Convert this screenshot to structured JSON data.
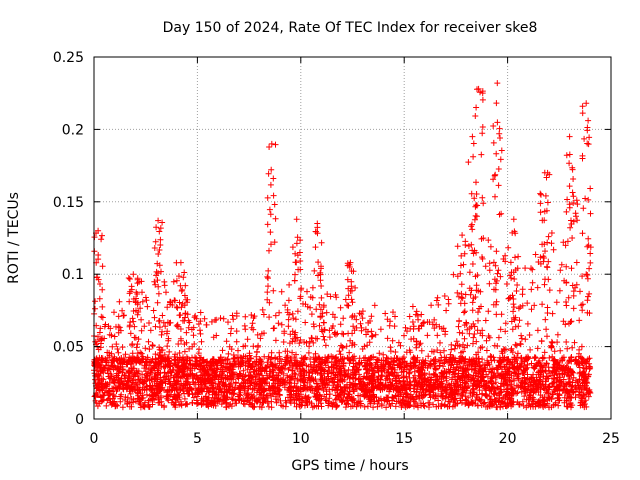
{
  "chart_data": {
    "type": "scatter",
    "title": "Day 150 of 2024, Rate Of TEC Index for receiver ske8",
    "xlabel": "GPS time / hours",
    "ylabel": "ROTI / TECUs",
    "xlim": [
      0,
      25
    ],
    "ylim": [
      0,
      0.25
    ],
    "xticks": [
      0,
      5,
      10,
      15,
      20,
      25
    ],
    "xtick_labels": [
      "0",
      "5",
      "10",
      "15",
      "20",
      "25"
    ],
    "yticks": [
      0,
      0.05,
      0.1,
      0.15,
      0.2,
      0.25
    ],
    "ytick_labels": [
      "0",
      "0.05",
      "0.1",
      "0.15",
      "0.2",
      "0.25"
    ],
    "grid": true,
    "marker": "+",
    "color": "#ff0000",
    "series": [
      {
        "name": "ROTI",
        "description": "dense scatter; baseline 0.01-0.05 with spikes; x range 0-24 h",
        "peaks": [
          {
            "x": 0.2,
            "y": 0.13
          },
          {
            "x": 1.9,
            "y": 0.1
          },
          {
            "x": 3.1,
            "y": 0.137
          },
          {
            "x": 4.2,
            "y": 0.108
          },
          {
            "x": 8.6,
            "y": 0.19
          },
          {
            "x": 9.8,
            "y": 0.138
          },
          {
            "x": 10.8,
            "y": 0.135
          },
          {
            "x": 12.4,
            "y": 0.108
          },
          {
            "x": 17.8,
            "y": 0.127
          },
          {
            "x": 18.3,
            "y": 0.195
          },
          {
            "x": 18.6,
            "y": 0.228
          },
          {
            "x": 19.5,
            "y": 0.232
          },
          {
            "x": 20.3,
            "y": 0.138
          },
          {
            "x": 21.8,
            "y": 0.17
          },
          {
            "x": 23.0,
            "y": 0.195
          },
          {
            "x": 23.8,
            "y": 0.218
          }
        ],
        "envelope": [
          {
            "x": 0.0,
            "y": 0.065
          },
          {
            "x": 1.0,
            "y": 0.06
          },
          {
            "x": 2.0,
            "y": 0.075
          },
          {
            "x": 3.0,
            "y": 0.09
          },
          {
            "x": 4.0,
            "y": 0.075
          },
          {
            "x": 5.0,
            "y": 0.055
          },
          {
            "x": 6.0,
            "y": 0.06
          },
          {
            "x": 7.0,
            "y": 0.055
          },
          {
            "x": 8.0,
            "y": 0.06
          },
          {
            "x": 9.0,
            "y": 0.075
          },
          {
            "x": 10.0,
            "y": 0.07
          },
          {
            "x": 11.0,
            "y": 0.065
          },
          {
            "x": 12.0,
            "y": 0.07
          },
          {
            "x": 13.0,
            "y": 0.055
          },
          {
            "x": 14.0,
            "y": 0.065
          },
          {
            "x": 15.0,
            "y": 0.06
          },
          {
            "x": 16.0,
            "y": 0.055
          },
          {
            "x": 17.0,
            "y": 0.07
          },
          {
            "x": 18.0,
            "y": 0.1
          },
          {
            "x": 19.0,
            "y": 0.11
          },
          {
            "x": 20.0,
            "y": 0.1
          },
          {
            "x": 21.0,
            "y": 0.09
          },
          {
            "x": 22.0,
            "y": 0.11
          },
          {
            "x": 23.0,
            "y": 0.13
          },
          {
            "x": 24.0,
            "y": 0.14
          }
        ]
      }
    ]
  }
}
